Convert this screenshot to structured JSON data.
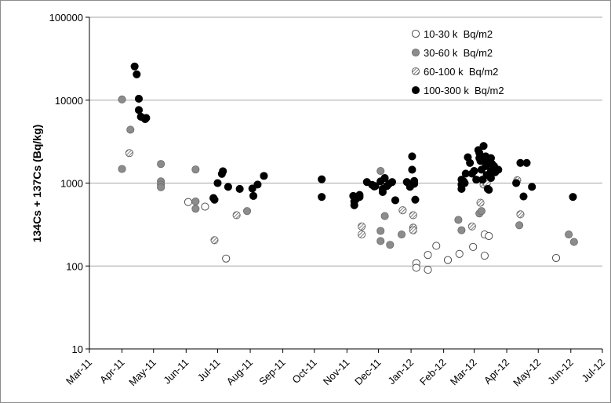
{
  "chart_data": {
    "type": "scatter",
    "title": "",
    "xlabel": "",
    "ylabel": "134Cs + 137Cs (Bq/kg)",
    "y_scale": "log",
    "ylim": [
      10,
      100000
    ],
    "y_ticks": [
      "10",
      "100",
      "1000",
      "10000",
      "100000"
    ],
    "xlim": [
      "2011-03-01",
      "2012-07-01"
    ],
    "x_ticks": [
      "Mar-11",
      "Apr-11",
      "May-11",
      "Jun-11",
      "Jul-11",
      "Aug-11",
      "Sep-11",
      "Oct-11",
      "Nov-11",
      "Dec-11",
      "Jan-12",
      "Feb-12",
      "Mar-12",
      "Apr-12",
      "May-12",
      "Jun-12",
      "Jul-12"
    ],
    "grid": "horizontal major gridlines",
    "legend_position": "top-right",
    "colors": {
      "open_fill": "#ffffff",
      "gray_fill": "#8c8c8c",
      "hatch": "#606060",
      "black_fill": "#000000",
      "gridline": "#a6a6a6"
    },
    "series": [
      {
        "name": "10-30 k  Bq/m2",
        "marker": "open-circle",
        "points": [
          [
            "2011-06-03",
            590
          ],
          [
            "2011-06-19",
            520
          ],
          [
            "2011-07-09",
            123
          ],
          [
            "2012-01-06",
            108
          ],
          [
            "2012-01-06",
            95
          ],
          [
            "2012-01-17",
            136
          ],
          [
            "2012-01-17",
            90
          ],
          [
            "2012-01-25",
            175
          ],
          [
            "2012-02-05",
            118
          ],
          [
            "2012-02-16",
            140
          ],
          [
            "2012-02-29",
            170
          ],
          [
            "2012-03-11",
            133
          ],
          [
            "2012-03-11",
            240
          ],
          [
            "2012-03-15",
            230
          ],
          [
            "2012-05-18",
            125
          ]
        ]
      },
      {
        "name": "30-60 k  Bq/m2",
        "marker": "gray-circle",
        "points": [
          [
            "2011-04-01",
            10200
          ],
          [
            "2011-04-01",
            1480
          ],
          [
            "2011-04-09",
            4400
          ],
          [
            "2011-05-08",
            1700
          ],
          [
            "2011-05-08",
            1050
          ],
          [
            "2011-05-08",
            960
          ],
          [
            "2011-05-08",
            890
          ],
          [
            "2011-06-10",
            1460
          ],
          [
            "2011-06-10",
            600
          ],
          [
            "2011-06-10",
            490
          ],
          [
            "2011-07-29",
            460
          ],
          [
            "2011-12-03",
            1400
          ],
          [
            "2011-12-03",
            265
          ],
          [
            "2011-12-03",
            200
          ],
          [
            "2011-12-07",
            400
          ],
          [
            "2011-12-12",
            180
          ],
          [
            "2011-12-23",
            240
          ],
          [
            "2012-02-15",
            360
          ],
          [
            "2012-02-18",
            270
          ],
          [
            "2012-03-06",
            430
          ],
          [
            "2012-03-08",
            460
          ],
          [
            "2012-04-13",
            310
          ],
          [
            "2012-05-30",
            240
          ],
          [
            "2012-06-04",
            195
          ]
        ]
      },
      {
        "name": "60-100 k  Bq/m2",
        "marker": "hatched-circle",
        "points": [
          [
            "2011-04-08",
            2300
          ],
          [
            "2011-06-28",
            205
          ],
          [
            "2011-07-19",
            410
          ],
          [
            "2011-11-15",
            300
          ],
          [
            "2011-11-15",
            240
          ],
          [
            "2011-12-24",
            470
          ],
          [
            "2012-01-03",
            410
          ],
          [
            "2012-01-03",
            290
          ],
          [
            "2012-01-03",
            270
          ],
          [
            "2012-02-28",
            300
          ],
          [
            "2012-03-07",
            580
          ],
          [
            "2012-03-10",
            960
          ],
          [
            "2012-03-13",
            990
          ],
          [
            "2012-04-11",
            1080
          ],
          [
            "2012-04-14",
            420
          ]
        ]
      },
      {
        "name": "100-300 k  Bq/m2",
        "marker": "black-circle",
        "points": [
          [
            "2011-04-13",
            25500
          ],
          [
            "2011-04-15",
            20500
          ],
          [
            "2011-04-17",
            10400
          ],
          [
            "2011-04-17",
            7600
          ],
          [
            "2011-04-19",
            6300
          ],
          [
            "2011-04-23",
            5900
          ],
          [
            "2011-04-24",
            6100
          ],
          [
            "2011-06-27",
            660
          ],
          [
            "2011-06-28",
            630
          ],
          [
            "2011-07-01",
            1000
          ],
          [
            "2011-07-05",
            1290
          ],
          [
            "2011-07-06",
            1390
          ],
          [
            "2011-07-11",
            900
          ],
          [
            "2011-07-22",
            850
          ],
          [
            "2011-08-03",
            860
          ],
          [
            "2011-08-04",
            700
          ],
          [
            "2011-08-08",
            960
          ],
          [
            "2011-08-14",
            1220
          ],
          [
            "2011-10-08",
            1110
          ],
          [
            "2011-10-08",
            680
          ],
          [
            "2011-11-07",
            700
          ],
          [
            "2011-11-08",
            600
          ],
          [
            "2011-11-08",
            540
          ],
          [
            "2011-11-10",
            650
          ],
          [
            "2011-11-13",
            720
          ],
          [
            "2011-11-13",
            680
          ],
          [
            "2011-11-20",
            1030
          ],
          [
            "2011-11-25",
            950
          ],
          [
            "2011-11-27",
            910
          ],
          [
            "2011-11-28",
            920
          ],
          [
            "2011-12-03",
            1050
          ],
          [
            "2011-12-05",
            850
          ],
          [
            "2011-12-05",
            780
          ],
          [
            "2011-12-07",
            1150
          ],
          [
            "2011-12-09",
            920
          ],
          [
            "2011-12-11",
            980
          ],
          [
            "2011-12-14",
            1030
          ],
          [
            "2011-12-17",
            620
          ],
          [
            "2011-12-28",
            1030
          ],
          [
            "2011-12-31",
            900
          ],
          [
            "2012-01-02",
            2100
          ],
          [
            "2012-01-02",
            1450
          ],
          [
            "2012-01-04",
            1060
          ],
          [
            "2012-01-04",
            980
          ],
          [
            "2012-01-05",
            630
          ],
          [
            "2012-02-18",
            850
          ],
          [
            "2012-02-18",
            960
          ],
          [
            "2012-02-18",
            1100
          ],
          [
            "2012-02-20",
            1050
          ],
          [
            "2012-02-21",
            1000
          ],
          [
            "2012-02-22",
            1300
          ],
          [
            "2012-02-24",
            2050
          ],
          [
            "2012-02-26",
            1750
          ],
          [
            "2012-02-28",
            1300
          ],
          [
            "2012-03-01",
            1400
          ],
          [
            "2012-03-03",
            1100
          ],
          [
            "2012-03-05",
            2500
          ],
          [
            "2012-03-06",
            2300
          ],
          [
            "2012-03-06",
            2000
          ],
          [
            "2012-03-07",
            1850
          ],
          [
            "2012-03-08",
            1450
          ],
          [
            "2012-03-09",
            1100
          ],
          [
            "2012-03-10",
            2800
          ],
          [
            "2012-03-12",
            2100
          ],
          [
            "2012-03-12",
            1900
          ],
          [
            "2012-03-12",
            1600
          ],
          [
            "2012-03-13",
            1250
          ],
          [
            "2012-03-14",
            850
          ],
          [
            "2012-03-15",
            830
          ],
          [
            "2012-03-17",
            2000
          ],
          [
            "2012-03-17",
            1400
          ],
          [
            "2012-03-17",
            1150
          ],
          [
            "2012-03-18",
            1700
          ],
          [
            "2012-03-20",
            1600
          ],
          [
            "2012-03-21",
            1350
          ],
          [
            "2012-03-24",
            1450
          ],
          [
            "2012-04-10",
            1000
          ],
          [
            "2012-04-14",
            1750
          ],
          [
            "2012-04-17",
            690
          ],
          [
            "2012-04-20",
            1750
          ],
          [
            "2012-04-25",
            900
          ],
          [
            "2012-06-03",
            680
          ]
        ]
      }
    ]
  }
}
